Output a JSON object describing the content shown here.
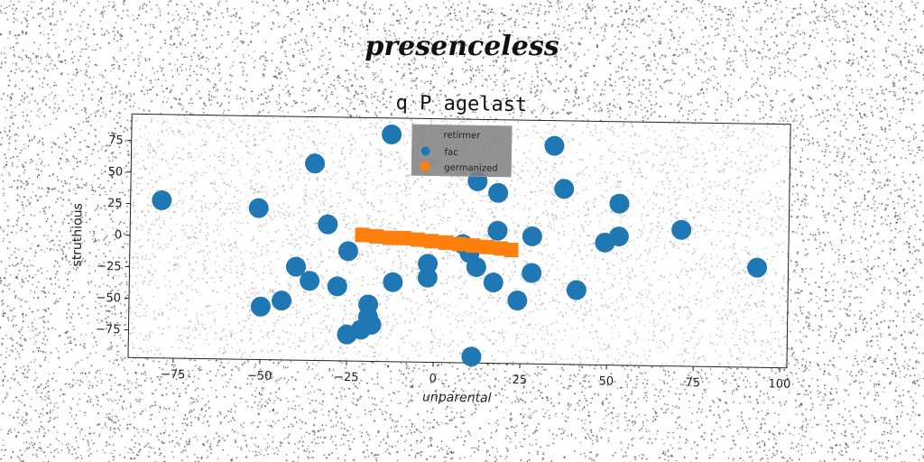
{
  "suptitle": "presenceless",
  "chart_data": {
    "type": "scatter",
    "title": "q P agelast",
    "xlabel": "unparental",
    "ylabel": "struthious",
    "xlim": [
      -88,
      102
    ],
    "ylim": [
      -97,
      96
    ],
    "xticks": [
      -75,
      -50,
      -25,
      0,
      25,
      50,
      75,
      100
    ],
    "yticks": [
      -75,
      -50,
      -25,
      0,
      25,
      50,
      75
    ],
    "grid": false,
    "legend": {
      "title": "retirmer",
      "placement": "top-center"
    },
    "series": [
      {
        "name": "fac",
        "marker": "circle",
        "color": "#1f77b4",
        "points": [
          [
            -79,
            28
          ],
          [
            -51,
            23
          ],
          [
            -35,
            59
          ],
          [
            -31,
            11
          ],
          [
            -25,
            -10
          ],
          [
            -40,
            -23
          ],
          [
            -36,
            -34
          ],
          [
            -28,
            -38
          ],
          [
            -44,
            -50
          ],
          [
            -50,
            -55
          ],
          [
            -19,
            -52
          ],
          [
            -19,
            -62
          ],
          [
            -18,
            -68
          ],
          [
            -21,
            -72
          ],
          [
            -25,
            -76
          ],
          [
            -12,
            -34
          ],
          [
            -13,
            83
          ],
          [
            -2,
            -19
          ],
          [
            -2,
            -30
          ],
          [
            8,
            -3
          ],
          [
            10,
            -10
          ],
          [
            12,
            -21
          ],
          [
            17,
            -33
          ],
          [
            12,
            47
          ],
          [
            18,
            38
          ],
          [
            18,
            8
          ],
          [
            28,
            4
          ],
          [
            28,
            -25
          ],
          [
            24,
            -47
          ],
          [
            34,
            76
          ],
          [
            37,
            42
          ],
          [
            41,
            -38
          ],
          [
            49,
            0
          ],
          [
            53,
            5
          ],
          [
            53,
            31
          ],
          [
            71,
            11
          ],
          [
            93,
            -18
          ],
          [
            11,
            -92
          ]
        ]
      },
      {
        "name": "germanized",
        "marker": "square",
        "color": "#ff7f0e",
        "points": [
          [
            -21,
            3
          ],
          [
            -17,
            2
          ],
          [
            -13,
            1
          ],
          [
            -9,
            1
          ],
          [
            -5,
            0
          ],
          [
            -1,
            -1
          ],
          [
            3,
            -2
          ],
          [
            7,
            -3
          ],
          [
            11,
            -4
          ],
          [
            15,
            -5
          ],
          [
            19,
            -6
          ],
          [
            22,
            -7
          ]
        ]
      }
    ]
  }
}
